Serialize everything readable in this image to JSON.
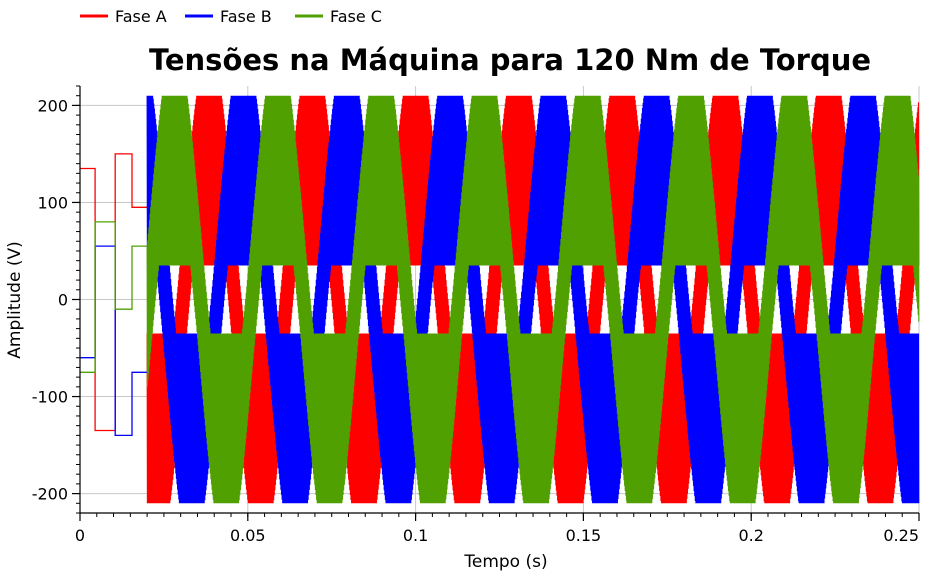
{
  "chart_data": {
    "type": "line",
    "title": "Tensões na Máquina para 120 Nm de Torque",
    "xlabel": "Tempo (s)",
    "ylabel": "Amplitude (V)",
    "xlim": [
      0,
      0.25
    ],
    "ylim": [
      -220,
      220
    ],
    "x_ticks": [
      0,
      0.05,
      0.1,
      0.15,
      0.2,
      0.25
    ],
    "x_tick_labels": [
      "0",
      "0.05",
      "0.1",
      "0.15",
      "0.2",
      "0.25"
    ],
    "y_ticks": [
      -200,
      -100,
      0,
      100,
      200
    ],
    "y_tick_labels": [
      "-200",
      "-100",
      "0",
      "100",
      "200"
    ],
    "grid": true,
    "legend_position": "top-left",
    "fundamental_frequency_hz": 32.5,
    "switching_band_v": 210,
    "series": [
      {
        "name": "Fase A",
        "color": "#ff0000",
        "phase_deg": 0,
        "startup_dc_v": [
          135,
          -135,
          150,
          95
        ]
      },
      {
        "name": "Fase B",
        "color": "#0000ff",
        "phase_deg": -120,
        "startup_dc_v": [
          -60,
          55,
          -140,
          -75
        ]
      },
      {
        "name": "Fase C",
        "color": "#4fa000",
        "phase_deg": 120,
        "startup_dc_v": [
          -75,
          80,
          -10,
          55
        ]
      }
    ],
    "startup_segment_times_s": [
      0,
      0.0045,
      0.0105,
      0.0155,
      0.02
    ]
  }
}
